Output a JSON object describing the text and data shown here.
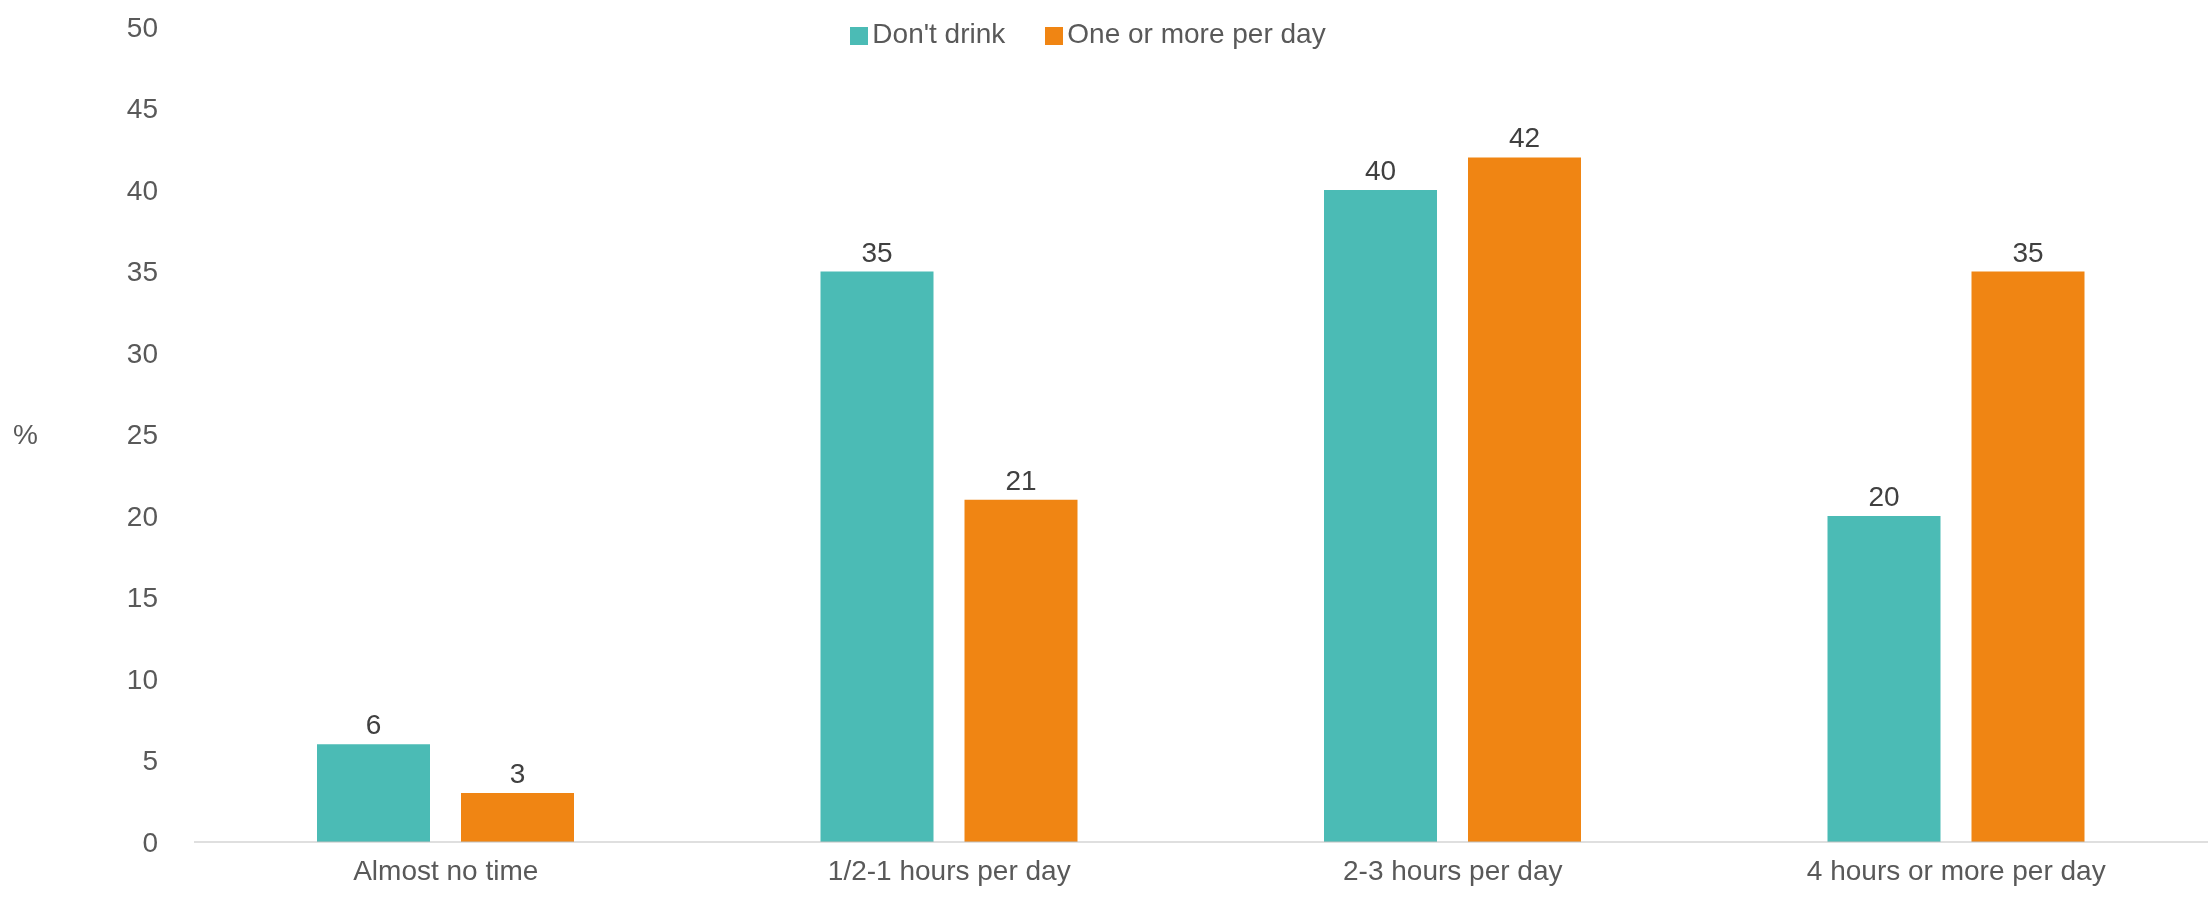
{
  "chart_data": {
    "type": "bar",
    "ylabel": "%",
    "categories": [
      "Almost no time",
      "1/2-1 hours per day",
      "2-3 hours per day",
      "4 hours or more per day"
    ],
    "series": [
      {
        "name": "Don't drink",
        "color": "#4bbbb5",
        "values": [
          6,
          35,
          40,
          20
        ]
      },
      {
        "name": "One or more per day",
        "color": "#f08513",
        "values": [
          3,
          21,
          42,
          35
        ]
      }
    ],
    "ylim": [
      0,
      50
    ],
    "yticks": [
      0,
      5,
      10,
      15,
      20,
      25,
      30,
      35,
      40,
      45,
      50
    ],
    "grid": false,
    "legend": "top",
    "data_labels": true
  }
}
